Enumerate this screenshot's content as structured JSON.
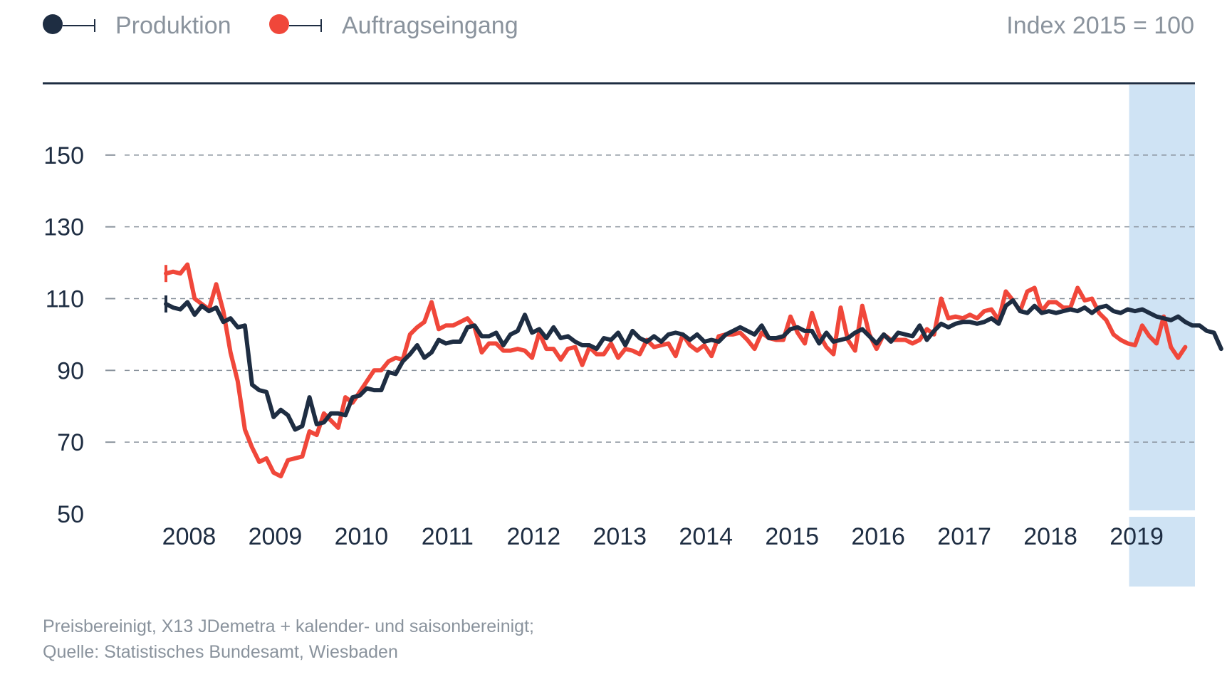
{
  "legend": {
    "items": [
      {
        "label": "Produktion",
        "color": "#1e2d42"
      },
      {
        "label": "Auftragseingang",
        "color": "#f0473a"
      }
    ],
    "unit": "Index 2015 = 100"
  },
  "footnote": {
    "line1": "Preisbereinigt, X13 JDemetra + kalender- und saisonbereinigt;",
    "line2": "Quelle: Statistisches Bundesamt, Wiesbaden"
  },
  "colors": {
    "produktion": "#1e2d42",
    "auftragseingang": "#f0473a",
    "highlight": "#cfe3f4",
    "grid": "#8a939d",
    "top_rule": "#1e2d42"
  },
  "chart_data": {
    "type": "line",
    "x_start": "2008-01",
    "x_frequency": "monthly",
    "ylim": [
      50,
      170
    ],
    "yticks": [
      150,
      130,
      110,
      90,
      70,
      50
    ],
    "xticks": [
      "2008",
      "2009",
      "2010",
      "2011",
      "2012",
      "2013",
      "2014",
      "2015",
      "2016",
      "2017",
      "2018",
      "2019"
    ],
    "highlight_period": {
      "from": "2019-01",
      "to": "2019-12",
      "label": "2019"
    },
    "grid": "horizontal dashed",
    "legend_position": "top-left",
    "series": [
      {
        "name": "Produktion",
        "color": "#1e2d42",
        "values": [
          108.5,
          107.5,
          107.0,
          109.0,
          105.5,
          108.0,
          106.5,
          107.5,
          103.5,
          104.5,
          102.0,
          102.5,
          86.0,
          84.5,
          84.0,
          77.0,
          79.0,
          77.5,
          73.5,
          74.5,
          82.5,
          75.0,
          75.5,
          78.0,
          78.0,
          77.5,
          82.5,
          83.0,
          85.0,
          84.5,
          84.5,
          89.5,
          89.0,
          92.5,
          94.5,
          97.0,
          93.5,
          95.0,
          98.5,
          97.5,
          98.0,
          98.0,
          102.0,
          102.5,
          99.5,
          99.5,
          100.5,
          97.0,
          100.0,
          101.0,
          105.5,
          100.5,
          101.5,
          99.0,
          102.0,
          99.0,
          99.5,
          98.0,
          97.0,
          97.0,
          96.0,
          99.0,
          98.5,
          100.5,
          97.0,
          101.0,
          99.0,
          98.0,
          99.5,
          98.0,
          100.0,
          100.5,
          100.0,
          98.5,
          100.0,
          98.0,
          98.5,
          98.0,
          100.0,
          101.0,
          102.0,
          101.0,
          100.0,
          102.5,
          99.0,
          99.0,
          99.5,
          101.5,
          102.0,
          101.0,
          101.0,
          97.5,
          100.5,
          98.0,
          98.5,
          99.0,
          100.5,
          101.5,
          99.5,
          97.5,
          100.0,
          98.0,
          100.5,
          100.0,
          99.5,
          102.5,
          98.5,
          101.0,
          103.0,
          102.0,
          103.0,
          103.5,
          103.5,
          103.0,
          103.5,
          104.5,
          103.0,
          108.0,
          109.5,
          106.5,
          106.0,
          108.0,
          106.0,
          106.5,
          106.0,
          106.5,
          107.0,
          106.5,
          107.5,
          106.0,
          107.5,
          108.0,
          106.5,
          106.0,
          107.0,
          106.5,
          107.0,
          106.0,
          105.0,
          104.5,
          104.0,
          105.0,
          103.5,
          102.5,
          102.5,
          101.0,
          100.5,
          96.0
        ]
      },
      {
        "name": "Auftragseingang",
        "color": "#f0473a",
        "values": [
          117.0,
          117.5,
          117.0,
          119.5,
          110.0,
          108.5,
          107.0,
          114.0,
          106.5,
          95.0,
          87.0,
          73.5,
          68.5,
          64.5,
          65.5,
          61.5,
          60.5,
          65.0,
          65.5,
          66.0,
          73.0,
          72.0,
          78.0,
          76.0,
          74.0,
          82.5,
          81.0,
          84.0,
          87.0,
          90.0,
          90.0,
          92.5,
          93.5,
          93.0,
          100.0,
          102.0,
          103.5,
          109.0,
          101.5,
          102.5,
          102.5,
          103.5,
          104.5,
          102.0,
          95.0,
          97.5,
          97.5,
          95.5,
          95.5,
          96.0,
          95.5,
          93.5,
          100.5,
          96.0,
          96.0,
          93.0,
          96.0,
          96.5,
          91.5,
          96.5,
          94.5,
          94.5,
          97.5,
          93.5,
          96.0,
          95.5,
          94.5,
          98.5,
          96.5,
          97.0,
          97.5,
          94.0,
          100.0,
          97.0,
          95.5,
          97.0,
          94.0,
          99.5,
          100.0,
          100.0,
          100.5,
          98.5,
          96.0,
          100.5,
          99.0,
          98.5,
          98.5,
          105.0,
          100.5,
          97.5,
          106.0,
          100.0,
          96.5,
          94.5,
          107.5,
          98.5,
          95.5,
          108.0,
          100.0,
          96.0,
          100.0,
          98.5,
          98.5,
          98.5,
          97.5,
          98.5,
          101.5,
          100.0,
          110.0,
          104.5,
          105.0,
          104.5,
          105.5,
          104.5,
          106.5,
          107.0,
          104.0,
          112.0,
          109.5,
          106.5,
          112.0,
          113.0,
          106.5,
          109.0,
          109.0,
          107.5,
          107.5,
          113.0,
          109.5,
          110.0,
          106.0,
          104.0,
          100.0,
          98.5,
          97.5,
          97.0,
          102.5,
          99.5,
          97.5,
          105.0,
          96.5,
          93.5,
          96.5
        ]
      }
    ]
  }
}
